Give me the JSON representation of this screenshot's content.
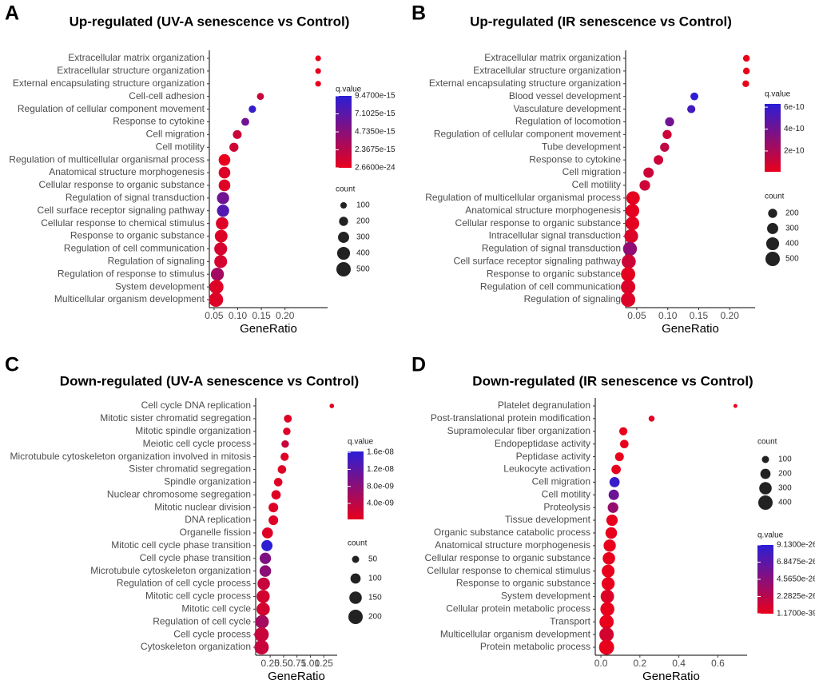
{
  "chart_data": [
    {
      "type": "dot",
      "panel": "A",
      "title": "Up-regulated (UV-A senescence vs Control)",
      "xlabel": "GeneRatio",
      "categories": [
        "Extracellular matrix organization",
        "Extracellular structure organization",
        "External encapsulating structure organization",
        "Cell-cell adhesion",
        "Regulation of cellular component movement",
        "Response to cytokine",
        "Cell migration",
        "Cell motility",
        "Regulation of multicellular organismal process",
        "Anatomical structure morphogenesis",
        "Cellular response to organic substance",
        "Regulation of signal transduction",
        "Cell surface receptor signaling pathway",
        "Cellular response to chemical stimulus",
        "Response to organic substance",
        "Regulation of cell communication",
        "Regulation of signaling",
        "Regulation of response to stimulus",
        "System development",
        "Multicellular organism development"
      ],
      "values": [
        0.27,
        0.27,
        0.27,
        0.148,
        0.131,
        0.116,
        0.099,
        0.092,
        0.072,
        0.072,
        0.072,
        0.069,
        0.069,
        0.067,
        0.065,
        0.064,
        0.064,
        0.057,
        0.055,
        0.054
      ],
      "count": [
        80,
        80,
        80,
        120,
        130,
        150,
        190,
        200,
        330,
        330,
        330,
        360,
        360,
        380,
        390,
        400,
        400,
        410,
        480,
        500
      ],
      "q_value": [
        1e-20,
        1e-20,
        1e-20,
        1.5e-15,
        9e-15,
        6e-15,
        1.5e-15,
        1.2e-15,
        1e-18,
        5e-16,
        5e-16,
        6e-15,
        7.5e-15,
        5e-16,
        5e-16,
        1e-15,
        1e-15,
        3.5e-15,
        5e-16,
        5e-16
      ],
      "xlim": [
        0.04,
        0.29
      ],
      "xticks": [
        0.05,
        {
          "value": 0.1,
          "label": "0.10"
        },
        0.15,
        {
          "value": 0.2,
          "label": "0.20"
        }
      ],
      "color_legend": {
        "title": "q.value",
        "low_color": "#e8001c",
        "high_color": "#2b1ed6",
        "lim": [
          2.66e-24,
          9.47e-15
        ],
        "ticks": [
          {
            "value": 9.47e-15,
            "label": "9.4700e-15"
          },
          {
            "value": 7.1025e-15,
            "label": "7.1025e-15"
          },
          {
            "value": 4.735e-15,
            "label": "4.7350e-15"
          },
          {
            "value": 2.3675e-15,
            "label": "2.3675e-15"
          },
          {
            "value": 2.66e-24,
            "label": "2.6600e-24"
          }
        ]
      },
      "size_legend": {
        "title": "count",
        "values": [
          100,
          200,
          300,
          400,
          500
        ]
      }
    },
    {
      "type": "dot",
      "panel": "B",
      "title": "Up-regulated (IR senescence vs Control)",
      "xlabel": "GeneRatio",
      "categories": [
        "Extracellular matrix organization",
        "Extracellular structure organization",
        "External encapsulating structure organization",
        "Blood vessel development",
        "Vasculature development",
        "Regulation of locomotion",
        "Regulation of cellular component movement",
        "Tube development",
        "Response to cytokine",
        "Cell migration",
        "Cell motility",
        "Regulation of multicellular organismal process",
        "Anatomical structure morphogenesis",
        "Cellular response to organic substance",
        "Intracellular signal transduction",
        "Regulation of signal transduction",
        "Cell surface receptor signaling pathway",
        "Response to organic substance",
        "Regulation of cell communication",
        "Regulation of signaling"
      ],
      "values": [
        0.227,
        0.227,
        0.226,
        0.143,
        0.138,
        0.103,
        0.099,
        0.095,
        0.085,
        0.069,
        0.063,
        0.044,
        0.043,
        0.043,
        0.041,
        0.039,
        0.037,
        0.036,
        0.036,
        0.036
      ],
      "count": [
        110,
        110,
        110,
        150,
        160,
        200,
        200,
        200,
        220,
        260,
        270,
        440,
        450,
        450,
        460,
        470,
        480,
        490,
        500,
        500
      ],
      "q_value": [
        1e-13,
        1e-13,
        1e-13,
        6.2e-10,
        5.5e-10,
        4e-10,
        1e-10,
        1.5e-10,
        1e-10,
        1e-10,
        1e-10,
        2e-11,
        2e-11,
        2e-11,
        5e-11,
        3e-10,
        1e-10,
        2e-11,
        5e-11,
        5e-11
      ],
      "xlim": [
        0.032,
        0.241
      ],
      "xticks": [
        0.05,
        {
          "value": 0.1,
          "label": "0.10"
        },
        0.15,
        {
          "value": 0.2,
          "label": "0.20"
        }
      ],
      "color_legend": {
        "title": "q.value",
        "low_color": "#e8001c",
        "high_color": "#2b1ed6",
        "lim": [
          1e-11,
          6.3e-10
        ],
        "ticks": [
          {
            "value": 6e-10,
            "label": "6e-10"
          },
          {
            "value": 4e-10,
            "label": "4e-10"
          },
          {
            "value": 2e-10,
            "label": "2e-10"
          }
        ]
      },
      "size_legend": {
        "title": "count",
        "values": [
          200,
          300,
          400,
          500
        ]
      }
    },
    {
      "type": "dot",
      "panel": "C",
      "title": "Down-regulated (UV-A senescence vs Control)",
      "xlabel": "GeneRatio",
      "categories": [
        "Cell cycle DNA replication",
        "Mitotic sister chromatid segregation",
        "Mitotic spindle organization",
        "Meiotic cell cycle process",
        "Microtubule cytoskeleton organization involved in mitosis",
        "Sister chromatid segregation",
        "Spindle organization",
        "Nuclear chromosome segregation",
        "Mitotic nuclear division",
        "DNA replication",
        "Organelle fission",
        "Mitotic cell cycle phase transition",
        "Cell cycle phase transition",
        "Microtubule cytoskeleton organization",
        "Regulation of cell cycle process",
        "Mitotic cell cycle process",
        "Mitotic cell cycle",
        "Regulation of cell cycle",
        "Cell cycle process",
        "Cytoskeleton organization"
      ],
      "values": [
        1.4,
        0.58,
        0.56,
        0.53,
        0.52,
        0.47,
        0.4,
        0.36,
        0.31,
        0.31,
        0.2,
        0.19,
        0.16,
        0.16,
        0.13,
        0.12,
        0.12,
        0.1,
        0.09,
        0.09
      ],
      "count": [
        20,
        60,
        55,
        55,
        65,
        70,
        70,
        85,
        90,
        90,
        115,
        120,
        125,
        130,
        150,
        165,
        170,
        175,
        200,
        200
      ],
      "q_value": [
        5e-10,
        1e-09,
        1e-09,
        3e-09,
        1e-09,
        1e-09,
        1e-09,
        1e-09,
        1e-09,
        1e-09,
        1e-09,
        1.6e-08,
        9e-09,
        8e-09,
        3e-09,
        2e-09,
        2e-09,
        6e-09,
        3e-09,
        3e-09
      ],
      "xlim": [
        -0.02,
        1.5
      ],
      "xticks": [
        0.25,
        {
          "value": 0.5,
          "label": "0.50"
        },
        0.75,
        {
          "value": 1,
          "label": "1.00"
        },
        1.25
      ],
      "color_legend": {
        "title": "q.value",
        "low_color": "#e8001c",
        "high_color": "#2b1ed6",
        "lim": [
          2.5e-10,
          1.62e-08
        ],
        "ticks": [
          {
            "value": 1.6e-08,
            "label": "1.6e-08"
          },
          {
            "value": 1.2e-08,
            "label": "1.2e-08"
          },
          {
            "value": 8e-09,
            "label": "8.0e-09"
          },
          {
            "value": 4e-09,
            "label": "4.0e-09"
          }
        ]
      },
      "size_legend": {
        "title": "count",
        "values": [
          50,
          100,
          150,
          200
        ]
      }
    },
    {
      "type": "dot",
      "panel": "D",
      "title": "Down-regulated (IR senescence vs Control)",
      "xlabel": "GeneRatio",
      "categories": [
        "Platelet degranulation",
        "Post-translational protein modification",
        "Supramolecular fiber organization",
        "Endopeptidase activity",
        "Peptidase activity",
        "Leukocyte activation",
        "Cell migration",
        "Cell motility",
        "Proteolysis",
        "Tissue development",
        "Organic substance catabolic process",
        "Anatomical structure morphogenesis",
        "Cellular response to organic substance",
        "Cellular response to chemical stimulus",
        "Response to organic substance",
        "System development",
        "Cellular protein metabolic process",
        "Transport",
        "Multicellular organism development",
        "Protein metabolic process"
      ],
      "values": [
        0.69,
        0.26,
        0.115,
        0.12,
        0.095,
        0.078,
        0.07,
        0.066,
        0.062,
        0.057,
        0.053,
        0.045,
        0.041,
        0.037,
        0.037,
        0.033,
        0.033,
        0.029,
        0.029,
        0.029
      ],
      "count": [
        30,
        70,
        130,
        140,
        150,
        170,
        200,
        210,
        220,
        250,
        260,
        290,
        300,
        320,
        330,
        350,
        380,
        390,
        400,
        440
      ],
      "q_value": [
        1e-30,
        3e-27,
        1e-30,
        1e-30,
        1e-30,
        1e-30,
        8.5e-26,
        6e-26,
        4e-26,
        1e-30,
        1e-30,
        1e-30,
        1e-30,
        1e-30,
        1e-30,
        5e-27,
        1e-30,
        1e-30,
        1e-26,
        1e-30
      ],
      "xlim": [
        -0.029,
        0.75
      ],
      "xticks": [
        {
          "value": 0,
          "label": "0.0"
        },
        0.2,
        0.4,
        0.6
      ],
      "color_legend": {
        "title": "q.value",
        "low_color": "#e8001c",
        "high_color": "#2b1ed6",
        "lim": [
          1.17e-39,
          9.13e-26
        ],
        "ticks": [
          {
            "value": 9.13e-26,
            "label": "9.1300e-26"
          },
          {
            "value": 6.8475e-26,
            "label": "6.8475e-26"
          },
          {
            "value": 4.565e-26,
            "label": "4.5650e-26"
          },
          {
            "value": 2.2825e-26,
            "label": "2.2825e-26"
          },
          {
            "value": 1.17e-39,
            "label": "1.1700e-39"
          }
        ]
      },
      "size_legend": {
        "title": "count",
        "values": [
          100,
          200,
          300,
          400
        ]
      }
    }
  ]
}
